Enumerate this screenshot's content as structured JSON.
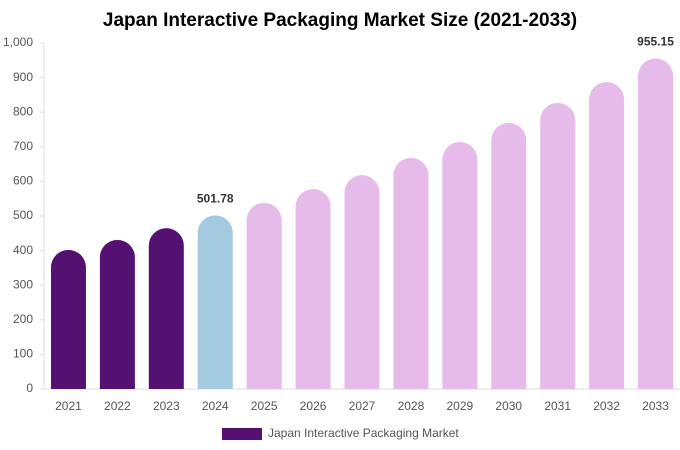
{
  "chart_data": {
    "type": "bar",
    "title": "Japan Interactive Packaging Market Size (2021-2033)",
    "categories": [
      "2021",
      "2022",
      "2023",
      "2024",
      "2025",
      "2026",
      "2027",
      "2028",
      "2029",
      "2030",
      "2031",
      "2032",
      "2033"
    ],
    "series": [
      {
        "name": "Japan Interactive Packaging Market",
        "color": "#541172",
        "values": [
          402,
          431,
          465,
          501.78,
          538,
          578,
          618,
          668,
          714,
          769,
          827,
          887,
          955.15
        ],
        "value_labels": [
          null,
          null,
          null,
          "501.78",
          null,
          null,
          null,
          null,
          null,
          null,
          null,
          null,
          "955.15"
        ],
        "colors": [
          "#541172",
          "#541172",
          "#541172",
          "#a4cadf",
          "#e6bbe9",
          "#e6bbe9",
          "#e6bbe9",
          "#e6bbe9",
          "#e6bbe9",
          "#e6bbe9",
          "#e6bbe9",
          "#e6bbe9",
          "#e6bbe9"
        ]
      }
    ],
    "ylim": [
      0,
      1000
    ],
    "yticks": [
      0,
      100,
      200,
      300,
      400,
      500,
      600,
      700,
      800,
      900,
      {
        "value": 1000,
        "label": "1,000"
      }
    ],
    "grid": false,
    "legend": "bottom"
  }
}
